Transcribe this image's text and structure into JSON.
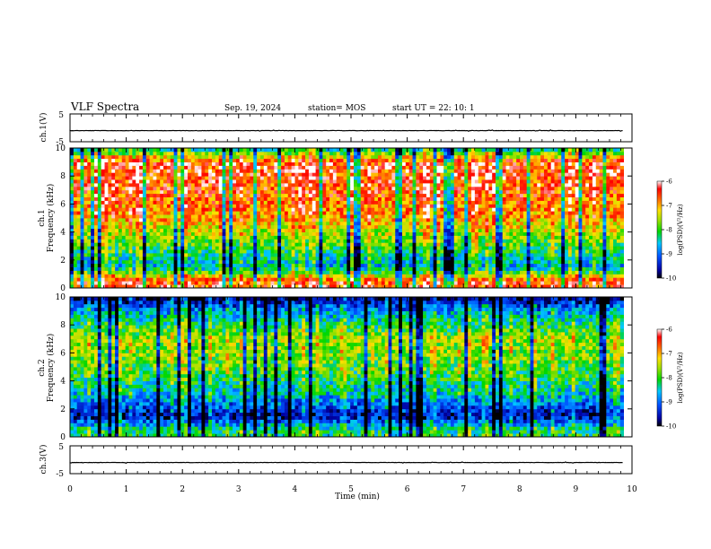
{
  "header": {
    "title": "VLF Spectra",
    "date": "Sep. 19, 2024",
    "station": "station= MOS",
    "start_ut": "start UT =  22: 10: 1"
  },
  "chart_data": [
    {
      "type": "line",
      "name": "ch1-waveform",
      "ylabel": "ch.1(V)",
      "ylim": [
        -5,
        5
      ],
      "ytick_labels": [
        "5",
        "-5"
      ],
      "xlim": [
        0,
        10
      ],
      "approx_level": -1
    },
    {
      "type": "heatmap",
      "name": "ch1-spectrogram",
      "ylabel_top": "ch.1",
      "ylabel": "Frequency (kHz)",
      "ylim": [
        0,
        10
      ],
      "ytick_labels": [
        "0",
        "2",
        "4",
        "6",
        "8",
        "10"
      ],
      "xlim": [
        0,
        9.85
      ],
      "colorbar": {
        "label": "log(PSD)(V²/Hz)",
        "ticks": [
          "-6",
          "-7",
          "-8",
          "-9",
          "-10"
        ],
        "range": [
          -10,
          -6
        ]
      },
      "intensity_by_freq_kHz": {
        "0.5": -6.6,
        "1.5": -8.7,
        "3": -8.0,
        "5": -7.0,
        "7": -6.6,
        "9": -6.5,
        "10": -8.5
      }
    },
    {
      "type": "heatmap",
      "name": "ch2-spectrogram",
      "ylabel_top": "ch.2",
      "ylabel": "Frequency (kHz)",
      "ylim": [
        0,
        10
      ],
      "ytick_labels": [
        "0",
        "2",
        "4",
        "6",
        "8",
        "10"
      ],
      "xlim": [
        0,
        9.85
      ],
      "colorbar": {
        "label": "log(PSD)(V²/Hz)",
        "ticks": [
          "-6",
          "-7",
          "-8",
          "-9",
          "-10"
        ],
        "range": [
          -10,
          -6
        ]
      },
      "intensity_by_freq_kHz": {
        "0.5": -8.2,
        "1.5": -9.6,
        "3": -8.6,
        "5": -7.9,
        "7": -7.6,
        "9": -8.8,
        "10": -9.8
      }
    },
    {
      "type": "line",
      "name": "ch3-waveform",
      "ylabel": "ch.3(V)",
      "ylim": [
        -5,
        5
      ],
      "ytick_labels": [
        "5",
        "-5"
      ],
      "xlim": [
        0,
        10
      ],
      "approx_level": -1
    }
  ],
  "xaxis": {
    "label": "Time (min)",
    "tick_labels": [
      "0",
      "1",
      "2",
      "3",
      "4",
      "5",
      "6",
      "7",
      "8",
      "9",
      "10"
    ]
  }
}
